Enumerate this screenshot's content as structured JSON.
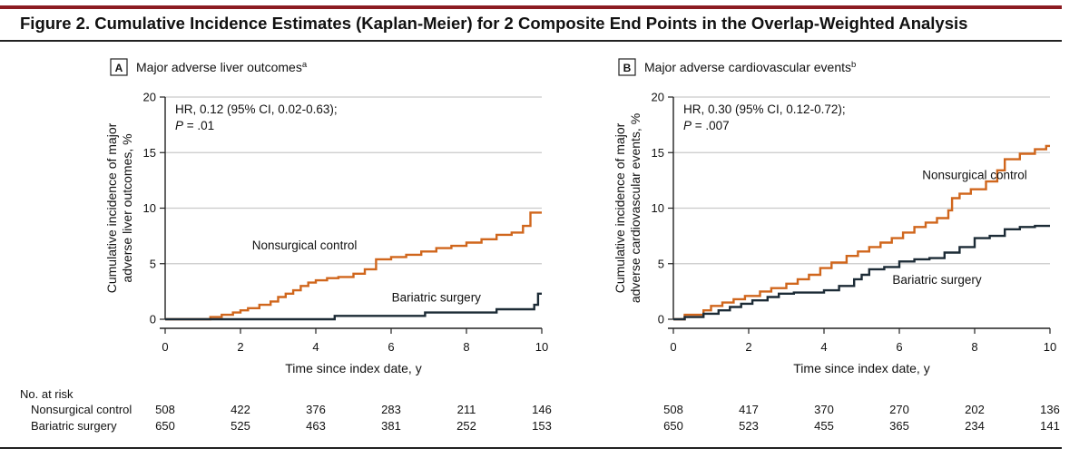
{
  "figure": {
    "title": "Figure 2. Cumulative Incidence Estimates (Kaplan-Meier) for 2 Composite End Points in the Overlap-Weighted Analysis",
    "accent_color": "#8c1b21"
  },
  "series_colors": {
    "Nonsurgical control": "#d0661c",
    "Bariatric surgery": "#1c2b36"
  },
  "risk_table": {
    "heading": "No. at risk",
    "rows": [
      "Nonsurgical control",
      "Bariatric surgery"
    ]
  },
  "chart_data": [
    {
      "type": "line",
      "panel_letter": "A",
      "title": "Major adverse liver outcomes",
      "title_sup": "a",
      "xlabel": "Time since index date, y",
      "ylabel_lines": [
        "Cumulative incidence of major",
        "adverse liver outcomes, %"
      ],
      "xlim": [
        0,
        10
      ],
      "ylim": [
        0,
        20
      ],
      "xticks": [
        0,
        2,
        4,
        6,
        8,
        10
      ],
      "yticks": [
        0,
        5,
        10,
        15,
        20
      ],
      "grid": true,
      "annotation": {
        "hr": "HR, 0.12 (95% CI, 0.02-0.63);",
        "p_label": "P",
        "p_value": " = .01"
      },
      "series": [
        {
          "name": "Nonsurgical control",
          "label": "Nonsurgical control",
          "x": [
            0,
            1.2,
            1.5,
            1.8,
            2.0,
            2.2,
            2.5,
            2.8,
            3.0,
            3.2,
            3.4,
            3.6,
            3.8,
            4.0,
            4.3,
            4.6,
            5.0,
            5.3,
            5.6,
            6.0,
            6.4,
            6.8,
            7.2,
            7.6,
            8.0,
            8.4,
            8.8,
            9.2,
            9.5,
            9.7,
            10.0
          ],
          "y": [
            0,
            0.2,
            0.4,
            0.6,
            0.8,
            1.0,
            1.3,
            1.6,
            2.0,
            2.3,
            2.6,
            3.0,
            3.3,
            3.5,
            3.7,
            3.8,
            4.1,
            4.5,
            5.4,
            5.6,
            5.8,
            6.1,
            6.4,
            6.6,
            6.9,
            7.2,
            7.6,
            7.8,
            8.4,
            9.6,
            9.6
          ]
        },
        {
          "name": "Bariatric surgery",
          "label": "Bariatric surgery",
          "x": [
            0,
            4.5,
            6.9,
            8.8,
            9.8,
            9.9,
            10.0
          ],
          "y": [
            0,
            0.3,
            0.6,
            0.9,
            1.3,
            2.3,
            2.3
          ]
        }
      ],
      "at_risk": {
        "Nonsurgical control": [
          508,
          422,
          376,
          283,
          211,
          146
        ],
        "Bariatric surgery": [
          650,
          525,
          463,
          381,
          252,
          153
        ]
      }
    },
    {
      "type": "line",
      "panel_letter": "B",
      "title": "Major adverse cardiovascular events",
      "title_sup": "b",
      "xlabel": "Time since index date, y",
      "ylabel_lines": [
        "Cumulative incidence of major",
        "adverse cardiovascular events, %"
      ],
      "xlim": [
        0,
        10
      ],
      "ylim": [
        0,
        20
      ],
      "xticks": [
        0,
        2,
        4,
        6,
        8,
        10
      ],
      "yticks": [
        0,
        5,
        10,
        15,
        20
      ],
      "grid": true,
      "annotation": {
        "hr": "HR, 0.30 (95% CI, 0.12-0.72);",
        "p_label": "P",
        "p_value": " = .007"
      },
      "series": [
        {
          "name": "Nonsurgical control",
          "label": "Nonsurgical control",
          "x": [
            0,
            0.3,
            0.8,
            1.0,
            1.3,
            1.6,
            1.9,
            2.3,
            2.6,
            3.0,
            3.3,
            3.6,
            3.9,
            4.2,
            4.6,
            4.9,
            5.2,
            5.5,
            5.8,
            6.1,
            6.4,
            6.7,
            7.0,
            7.3,
            7.4,
            7.6,
            7.9,
            8.3,
            8.6,
            8.8,
            9.2,
            9.6,
            9.9,
            10.0
          ],
          "y": [
            0,
            0.4,
            0.8,
            1.2,
            1.5,
            1.8,
            2.1,
            2.5,
            2.8,
            3.2,
            3.6,
            4.0,
            4.6,
            5.1,
            5.7,
            6.1,
            6.5,
            6.9,
            7.3,
            7.8,
            8.3,
            8.7,
            9.1,
            9.8,
            10.9,
            11.3,
            11.7,
            12.4,
            13.4,
            14.4,
            14.9,
            15.3,
            15.6,
            15.6
          ]
        },
        {
          "name": "Bariatric surgery",
          "label": "Bariatric surgery",
          "x": [
            0,
            0.3,
            0.8,
            1.2,
            1.5,
            1.8,
            2.1,
            2.5,
            2.8,
            3.2,
            3.6,
            4.0,
            4.4,
            4.8,
            5.0,
            5.2,
            5.6,
            6.0,
            6.4,
            6.8,
            7.2,
            7.6,
            8.0,
            8.4,
            8.8,
            9.2,
            9.6,
            10.0
          ],
          "y": [
            0,
            0.2,
            0.5,
            0.8,
            1.1,
            1.4,
            1.7,
            2.0,
            2.3,
            2.4,
            2.4,
            2.6,
            3.0,
            3.6,
            4.0,
            4.5,
            4.7,
            5.2,
            5.4,
            5.5,
            6.0,
            6.5,
            7.3,
            7.5,
            8.1,
            8.3,
            8.4,
            8.4
          ]
        }
      ],
      "at_risk": {
        "Nonsurgical control": [
          508,
          417,
          370,
          270,
          202,
          136
        ],
        "Bariatric surgery": [
          650,
          523,
          455,
          365,
          234,
          141
        ]
      }
    }
  ]
}
